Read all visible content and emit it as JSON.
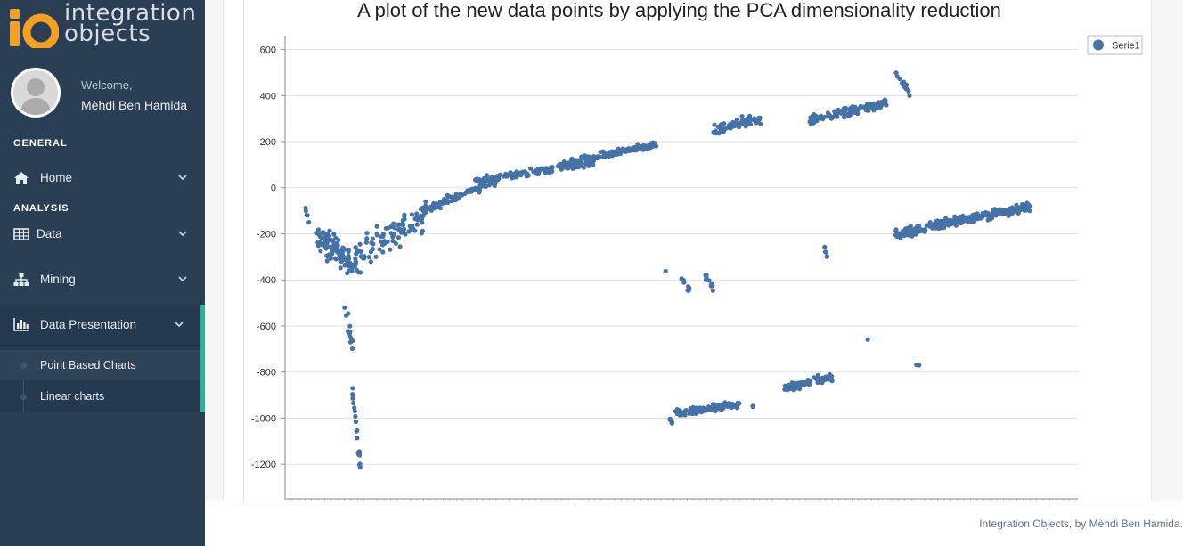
{
  "brand": {
    "logo_mark": "io",
    "line1": "integration",
    "line2": "objects"
  },
  "profile": {
    "welcome": "Welcome,",
    "name": "Mèhdi Ben Hamida"
  },
  "nav": {
    "general_title": "GENERAL",
    "analysis_title": "ANALYSIS",
    "home": {
      "label": "Home",
      "icon": "home-icon"
    },
    "data": {
      "label": "Data",
      "icon": "table-icon"
    },
    "mining": {
      "label": "Mining",
      "icon": "sitemap-icon"
    },
    "presentation": {
      "label": "Data Presentation",
      "icon": "bar-chart-icon",
      "children": [
        {
          "label": "Point Based Charts",
          "current": true
        },
        {
          "label": "Linear charts",
          "current": false
        }
      ]
    }
  },
  "colors": {
    "sidebar": "#2a3f54",
    "accent": "#1abb9c",
    "point": "#4572a7"
  },
  "chart_data": {
    "type": "scatter",
    "title": "A plot of the new data points by applying the PCA dimensionality reduction",
    "xlabel": "",
    "ylabel": "",
    "ylim": [
      -1350,
      660
    ],
    "yticks": [
      600,
      400,
      200,
      0,
      -200,
      -400,
      -600,
      -800,
      -1000,
      -1200
    ],
    "grid": true,
    "legend": {
      "position": "top-right",
      "entries": [
        "Serie1"
      ]
    },
    "series": [
      {
        "name": "Serie1",
        "clusters": [
          {
            "x": [
              0.04,
              0.09
            ],
            "y": [
              -450,
              -100
            ],
            "n": 110,
            "spread": 60,
            "trend": [
              -220,
              -330
            ]
          },
          {
            "x": [
              0.025,
              0.03
            ],
            "y": [
              -150,
              -80
            ],
            "n": 5,
            "spread": 30,
            "trend": [
              -80,
              -160
            ]
          },
          {
            "x": [
              0.075,
              0.085
            ],
            "y": [
              -700,
              -520
            ],
            "n": 14,
            "spread": 50,
            "trend": [
              -530,
              -690
            ]
          },
          {
            "x": [
              0.085,
              0.095
            ],
            "y": [
              -1220,
              -870
            ],
            "n": 22,
            "spread": 40,
            "trend": [
              -880,
              -1210
            ]
          },
          {
            "x": [
              0.09,
              0.18
            ],
            "y": [
              -440,
              -60
            ],
            "n": 90,
            "spread": 70,
            "trend": [
              -300,
              -100
            ]
          },
          {
            "x": [
              0.17,
              0.27
            ],
            "y": [
              -130,
              60
            ],
            "n": 90,
            "spread": 18,
            "trend": [
              -110,
              40
            ]
          },
          {
            "x": [
              0.24,
              0.39
            ],
            "y": [
              20,
              140
            ],
            "n": 140,
            "spread": 15,
            "trend": [
              30,
              110
            ]
          },
          {
            "x": [
              0.35,
              0.47
            ],
            "y": [
              90,
              250
            ],
            "n": 140,
            "spread": 15,
            "trend": [
              100,
              190
            ]
          },
          {
            "x": [
              0.48,
              0.48
            ],
            "y": [
              -370,
              -350
            ],
            "n": 1,
            "spread": 5,
            "trend": [
              -360,
              -360
            ]
          },
          {
            "x": [
              0.5,
              0.51
            ],
            "y": [
              -450,
              -370
            ],
            "n": 8,
            "spread": 20,
            "trend": [
              -380,
              -440
            ]
          },
          {
            "x": [
              0.53,
              0.54
            ],
            "y": [
              -450,
              -370
            ],
            "n": 10,
            "spread": 20,
            "trend": [
              -380,
              -440
            ]
          },
          {
            "x": [
              0.485,
              0.49
            ],
            "y": [
              -1035,
              -995
            ],
            "n": 6,
            "spread": 10,
            "trend": [
              -1000,
              -1030
            ]
          },
          {
            "x": [
              0.49,
              0.575
            ],
            "y": [
              -1010,
              -910
            ],
            "n": 90,
            "spread": 15,
            "trend": [
              -980,
              -940
            ]
          },
          {
            "x": [
              0.59,
              0.59
            ],
            "y": [
              -955,
              -940
            ],
            "n": 2,
            "spread": 5,
            "trend": [
              -945,
              -950
            ]
          },
          {
            "x": [
              0.54,
              0.6
            ],
            "y": [
              220,
              320
            ],
            "n": 70,
            "spread": 20,
            "trend": [
              250,
              300
            ]
          },
          {
            "x": [
              0.63,
              0.69
            ],
            "y": [
              -920,
              -800
            ],
            "n": 70,
            "spread": 15,
            "trend": [
              -870,
              -820
            ]
          },
          {
            "x": [
              0.66,
              0.76
            ],
            "y": [
              260,
              400
            ],
            "n": 120,
            "spread": 20,
            "trend": [
              290,
              370
            ]
          },
          {
            "x": [
              0.68,
              0.685
            ],
            "y": [
              -320,
              -250
            ],
            "n": 5,
            "spread": 10,
            "trend": [
              -250,
              -320
            ]
          },
          {
            "x": [
              0.735,
              0.735
            ],
            "y": [
              -665,
              -650
            ],
            "n": 1,
            "spread": 5,
            "trend": [
              -660,
              -660
            ]
          },
          {
            "x": [
              0.77,
              0.79
            ],
            "y": [
              390,
              500
            ],
            "n": 14,
            "spread": 20,
            "trend": [
              490,
              410
            ]
          },
          {
            "x": [
              0.77,
              0.81
            ],
            "y": [
              -270,
              -160
            ],
            "n": 55,
            "spread": 20,
            "trend": [
              -200,
              -180
            ]
          },
          {
            "x": [
              0.795,
              0.8
            ],
            "y": [
              -775,
              -760
            ],
            "n": 3,
            "spread": 5,
            "trend": [
              -765,
              -770
            ]
          },
          {
            "x": [
              0.81,
              0.94
            ],
            "y": [
              -200,
              -20
            ],
            "n": 220,
            "spread": 18,
            "trend": [
              -170,
              -80
            ]
          }
        ]
      }
    ]
  },
  "footer": {
    "text": "Integration Objects, by Mèhdi Ben Hamida."
  }
}
